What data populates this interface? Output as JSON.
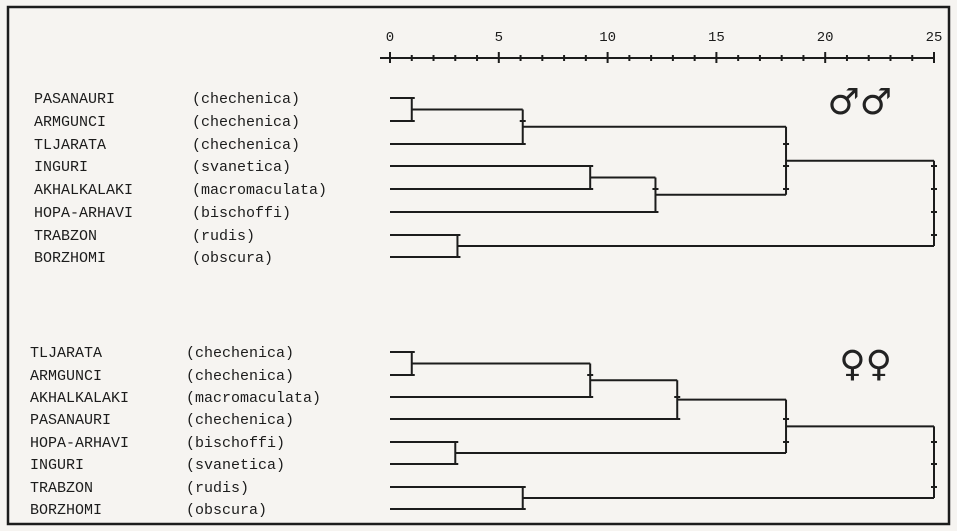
{
  "chart_data": {
    "type": "dendrogram",
    "axis": {
      "ticks": [
        "0",
        "5",
        "10",
        "15",
        "20",
        "25"
      ],
      "range": [
        0,
        25
      ]
    },
    "panels": [
      {
        "symbol": "♂♂",
        "leaves": [
          {
            "name": "PASANAURI",
            "taxon": "(chechenica)"
          },
          {
            "name": "ARMGUNCI",
            "taxon": "(chechenica)"
          },
          {
            "name": "TLJARATA",
            "taxon": "(chechenica)"
          },
          {
            "name": "INGURI",
            "taxon": "(svanetica)"
          },
          {
            "name": "AKHALKALAKI",
            "taxon": "(macromaculata)"
          },
          {
            "name": "HOPA-ARHAVI",
            "taxon": "(bischoffi)"
          },
          {
            "name": "TRABZON",
            "taxon": "(rudis)"
          },
          {
            "name": "BORZHOMI",
            "taxon": "(obscura)"
          }
        ],
        "merges": [
          {
            "a": 0,
            "b": 1,
            "distance": 1.0
          },
          {
            "a": 8,
            "b": 2,
            "distance": 6.1
          },
          {
            "a": 3,
            "b": 4,
            "distance": 9.2
          },
          {
            "a": 10,
            "b": 5,
            "distance": 12.2
          },
          {
            "a": 9,
            "b": 11,
            "distance": 18.2
          },
          {
            "a": 6,
            "b": 7,
            "distance": 3.1
          },
          {
            "a": 12,
            "b": 13,
            "distance": 25.0
          }
        ]
      },
      {
        "symbol": "♀♀",
        "leaves": [
          {
            "name": "TLJARATA",
            "taxon": "(chechenica)"
          },
          {
            "name": "ARMGUNCI",
            "taxon": "(chechenica)"
          },
          {
            "name": "AKHALKALAKI",
            "taxon": "(macromaculata)"
          },
          {
            "name": "PASANAURI",
            "taxon": "(chechenica)"
          },
          {
            "name": "HOPA-ARHAVI",
            "taxon": "(bischoffi)"
          },
          {
            "name": "INGURI",
            "taxon": "(svanetica)"
          },
          {
            "name": "TRABZON",
            "taxon": "(rudis)"
          },
          {
            "name": "BORZHOMI",
            "taxon": "(obscura)"
          }
        ],
        "merges": [
          {
            "a": 0,
            "b": 1,
            "distance": 1.0
          },
          {
            "a": 8,
            "b": 2,
            "distance": 9.2
          },
          {
            "a": 9,
            "b": 3,
            "distance": 13.2
          },
          {
            "a": 4,
            "b": 5,
            "distance": 3.0
          },
          {
            "a": 10,
            "b": 11,
            "distance": 18.2
          },
          {
            "a": 6,
            "b": 7,
            "distance": 6.1
          },
          {
            "a": 12,
            "b": 13,
            "distance": 25.0
          }
        ]
      }
    ]
  }
}
